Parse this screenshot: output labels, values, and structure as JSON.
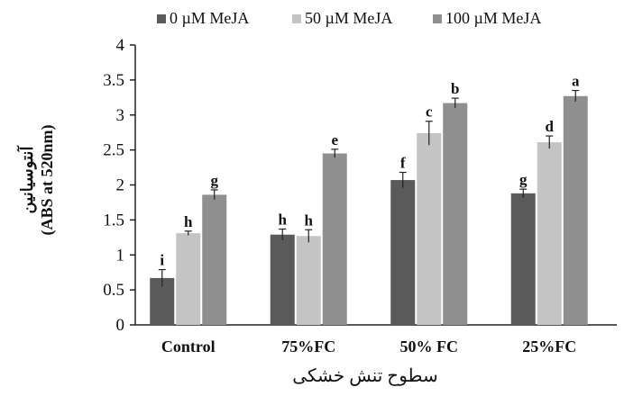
{
  "chart_data": {
    "type": "bar",
    "title": "",
    "categories": [
      "Control",
      "75%FC",
      "50% FC",
      "25%FC"
    ],
    "series": [
      {
        "name": "0 µM MeJA",
        "color": "#5a5a5a",
        "values": [
          0.67,
          1.29,
          2.07,
          1.88
        ],
        "errors": [
          0.12,
          0.08,
          0.11,
          0.06
        ],
        "labels": [
          "i",
          "h",
          "f",
          "g"
        ]
      },
      {
        "name": "50 µM MeJA",
        "color": "#c4c4c4",
        "values": [
          1.31,
          1.27,
          2.74,
          2.61
        ],
        "errors": [
          0.03,
          0.09,
          0.17,
          0.09
        ],
        "labels": [
          "h",
          "h",
          "c",
          "d"
        ]
      },
      {
        "name": "100 µM MeJA",
        "color": "#8f8f8f",
        "values": [
          1.86,
          2.45,
          3.17,
          3.27
        ],
        "errors": [
          0.07,
          0.06,
          0.07,
          0.08
        ],
        "labels": [
          "g",
          "e",
          "b",
          "a"
        ]
      }
    ],
    "ylabel_fa": "آنتوسیانین",
    "ylabel_en": "(ABS at 520nm)",
    "xlabel": "سطوح تنش خشکی",
    "ylim": [
      0,
      4
    ],
    "yticks": [
      "0",
      "0.5",
      "1",
      "1.5",
      "2",
      "2.5",
      "3",
      "3.5",
      "4"
    ],
    "grid": false,
    "legend_position": "top"
  }
}
